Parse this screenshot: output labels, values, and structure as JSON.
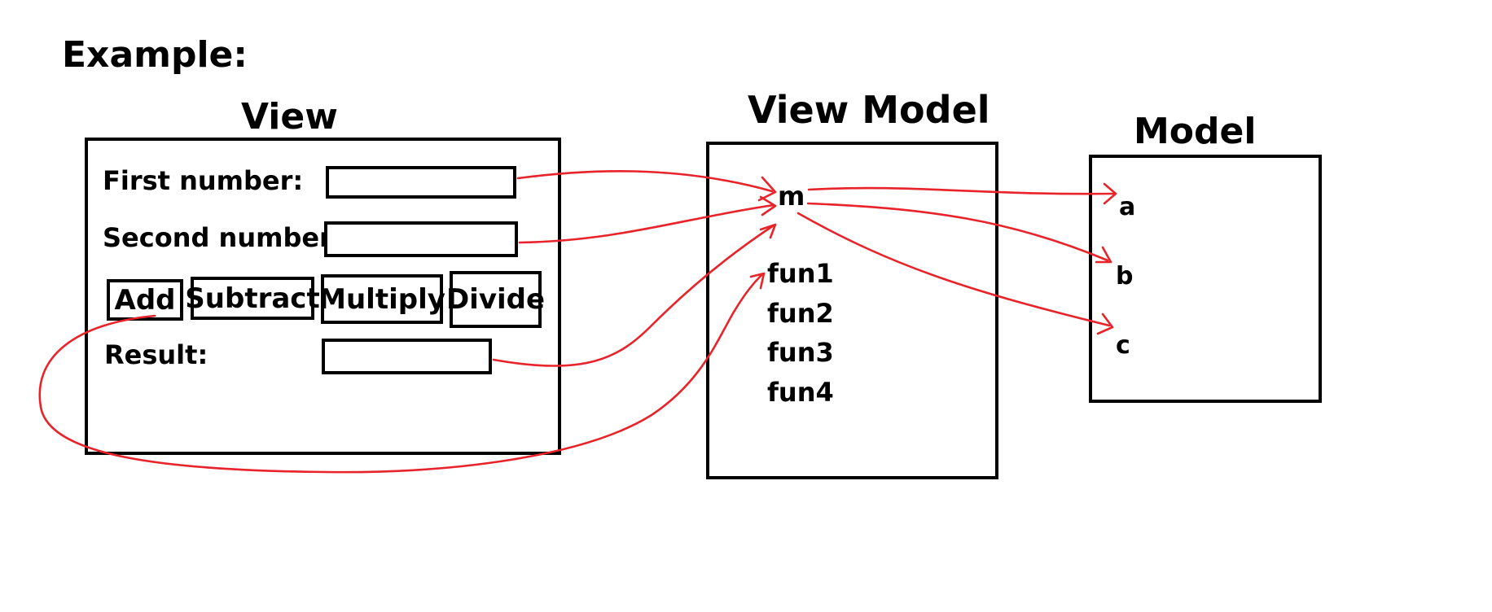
{
  "heading": "Example:",
  "view": {
    "title": "View",
    "first_label": "First number:",
    "second_label": "Second number:",
    "result_label": "Result:",
    "buttons": [
      "Add",
      "Subtract",
      "Multiply",
      "Divide"
    ]
  },
  "view_model": {
    "title": "View Model",
    "property": "m",
    "functions": [
      "fun1",
      "fun2",
      "fun3",
      "fun4"
    ]
  },
  "model": {
    "title": "Model",
    "fields": [
      "a",
      "b",
      "c"
    ]
  },
  "colors": {
    "arrow": "#e8232a",
    "outline": "#000000"
  }
}
